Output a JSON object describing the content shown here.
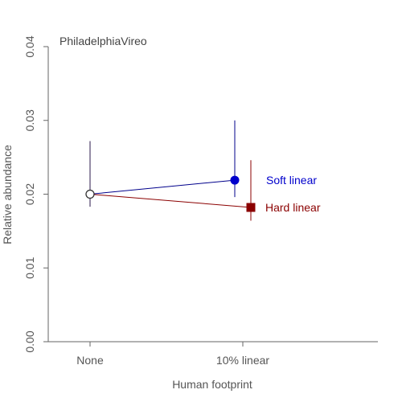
{
  "chart_data": {
    "type": "scatter",
    "title": "PhiladelphiaVireo",
    "xlabel": "Human footprint",
    "ylabel": "Relative abundance",
    "categories": [
      "None",
      "10% linear"
    ],
    "ylim": [
      0,
      0.04
    ],
    "yticks": [
      0.0,
      0.01,
      0.02,
      0.03,
      0.04
    ],
    "ytick_labels": [
      "0.00",
      "0.01",
      "0.02",
      "0.03",
      "0.04"
    ],
    "grid": false,
    "legend": "labels at right end of each series",
    "series": [
      {
        "name": "Soft linear",
        "color": "#0000cc",
        "line_color": "#00008b",
        "marker": "circle",
        "points": [
          {
            "category": "None",
            "y": 0.02,
            "lower": 0.0183,
            "upper": 0.0272
          },
          {
            "category": "10% linear",
            "y": 0.0219,
            "lower": 0.0196,
            "upper": 0.03
          }
        ]
      },
      {
        "name": "Hard linear",
        "color": "#8b0000",
        "line_color": "#8b0000",
        "marker": "square",
        "points": [
          {
            "category": "None",
            "y": 0.02,
            "lower": 0.0183,
            "upper": 0.0272
          },
          {
            "category": "10% linear",
            "y": 0.0182,
            "lower": 0.0164,
            "upper": 0.0246
          }
        ]
      }
    ]
  }
}
